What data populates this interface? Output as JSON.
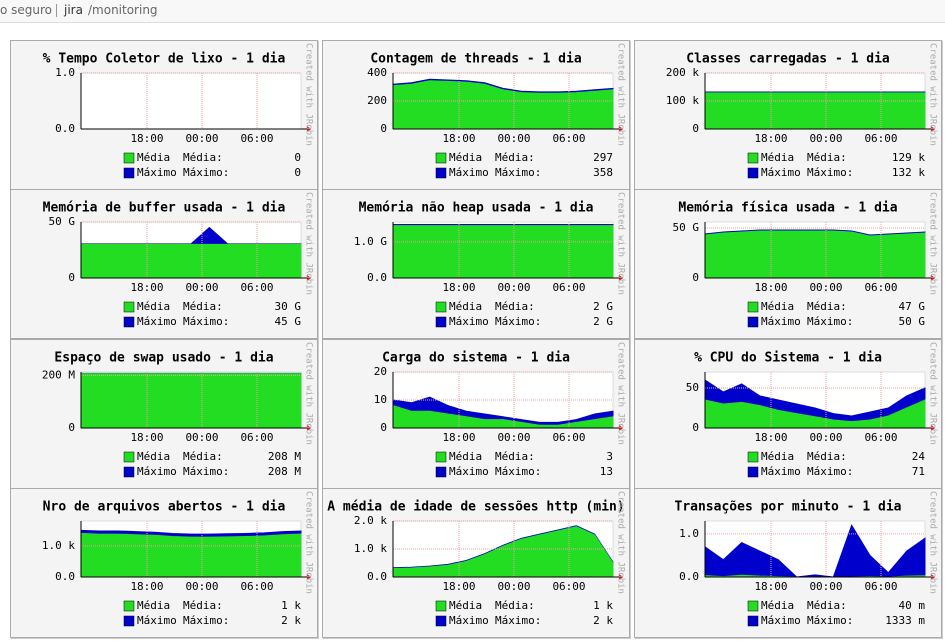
{
  "address_bar": {
    "security": "o seguro",
    "host": "jira",
    "path": "/monitoring"
  },
  "watermark": "Created with JRobin",
  "chart_data": [
    {
      "type": "area",
      "title": "% Tempo Coletor de lixo - 1 dia",
      "x": [
        0,
        2,
        4,
        6,
        8,
        10,
        12,
        14,
        16,
        18,
        20,
        22,
        24
      ],
      "xlim": [
        0,
        24
      ],
      "xticks": [
        {
          "value": 7.2,
          "label": "18:00"
        },
        {
          "value": 13.2,
          "label": "00:00"
        },
        {
          "value": 19.2,
          "label": "06:00"
        }
      ],
      "ylim": [
        0,
        1
      ],
      "yticks": [
        {
          "value": 0,
          "label": "0.0"
        },
        {
          "value": 1,
          "label": "1.0"
        }
      ],
      "grid": true,
      "series": [
        {
          "name": "Máximo",
          "color": "#0000cc",
          "values": [
            0,
            0,
            0,
            0,
            0,
            0,
            0,
            0,
            0,
            0,
            0,
            0,
            0
          ]
        },
        {
          "name": "Média",
          "color": "#22dd22",
          "values": [
            0,
            0,
            0,
            0,
            0,
            0,
            0,
            0,
            0,
            0,
            0,
            0,
            0
          ]
        }
      ],
      "stat_labels": [
        "Máximo:",
        "Média:"
      ],
      "summary": [
        "0",
        "0"
      ]
    },
    {
      "type": "area",
      "title": "Contagem de threads - 1 dia",
      "x": [
        0,
        2,
        4,
        6,
        8,
        10,
        12,
        14,
        16,
        18,
        20,
        22,
        24
      ],
      "xlim": [
        0,
        24
      ],
      "xticks": [
        {
          "value": 7.2,
          "label": "18:00"
        },
        {
          "value": 13.2,
          "label": "00:00"
        },
        {
          "value": 19.2,
          "label": "06:00"
        }
      ],
      "ylim": [
        0,
        400
      ],
      "yticks": [
        0,
        200,
        400
      ],
      "grid": true,
      "series": [
        {
          "name": "Máximo",
          "color": "#0000cc",
          "values": [
            320,
            330,
            355,
            350,
            345,
            330,
            290,
            270,
            265,
            265,
            270,
            280,
            290
          ]
        },
        {
          "name": "Média",
          "color": "#22dd22",
          "values": [
            310,
            320,
            345,
            340,
            335,
            320,
            280,
            260,
            255,
            255,
            260,
            270,
            280
          ]
        }
      ],
      "stat_labels": [
        "Máximo:",
        "Média:"
      ],
      "summary": [
        "358",
        "297"
      ]
    },
    {
      "type": "area",
      "title": "Classes carregadas - 1 dia",
      "x": [
        0,
        2,
        4,
        6,
        8,
        10,
        12,
        14,
        16,
        18,
        20,
        22,
        24
      ],
      "xlim": [
        0,
        24
      ],
      "xticks": [
        {
          "value": 7.2,
          "label": "18:00"
        },
        {
          "value": 13.2,
          "label": "00:00"
        },
        {
          "value": 19.2,
          "label": "06:00"
        }
      ],
      "ylim": [
        0,
        200000
      ],
      "yticks": [
        0,
        {
          "value": 100000,
          "label": "100 k"
        },
        {
          "value": 200000,
          "label": "200 k"
        }
      ],
      "grid": true,
      "series": [
        {
          "name": "Máximo",
          "color": "#0000cc",
          "values": [
            132000,
            132000,
            132000,
            132000,
            132000,
            132000,
            132000,
            132000,
            132000,
            132000,
            132000,
            132000,
            132000
          ]
        },
        {
          "name": "Média",
          "color": "#22dd22",
          "values": [
            129000,
            129000,
            129000,
            129000,
            129000,
            129000,
            129000,
            129000,
            129000,
            129000,
            129000,
            129000,
            129000
          ]
        }
      ],
      "stat_labels": [
        "Máximo:",
        "Média:"
      ],
      "summary": [
        "132 k",
        "129 k"
      ]
    },
    {
      "type": "area",
      "title": "Memória de buffer usada - 1 dia",
      "x": [
        0,
        2,
        4,
        6,
        8,
        10,
        12,
        14,
        16,
        18,
        20,
        22,
        24
      ],
      "xlim": [
        0,
        24
      ],
      "xticks": [
        {
          "value": 7.2,
          "label": "18:00"
        },
        {
          "value": 13.2,
          "label": "00:00"
        },
        {
          "value": 19.2,
          "label": "06:00"
        }
      ],
      "ylim": [
        0,
        50000000000.0
      ],
      "yticks": [
        0,
        {
          "value": 50000000000.0,
          "label": "50 G"
        }
      ],
      "grid": true,
      "series": [
        {
          "name": "Máximo",
          "color": "#0000cc",
          "values": [
            30500000000.0,
            30500000000.0,
            30500000000.0,
            30500000000.0,
            30500000000.0,
            30500000000.0,
            30500000000.0,
            45000000000.0,
            30500000000.0,
            30500000000.0,
            30500000000.0,
            30500000000.0,
            30500000000.0
          ]
        },
        {
          "name": "Média",
          "color": "#22dd22",
          "values": [
            30000000000.0,
            30000000000.0,
            30000000000.0,
            30000000000.0,
            30000000000.0,
            30000000000.0,
            30000000000.0,
            30000000000.0,
            30000000000.0,
            30000000000.0,
            30000000000.0,
            30000000000.0,
            30000000000.0
          ]
        }
      ],
      "stat_labels": [
        "Máximo:",
        "Média:"
      ],
      "summary": [
        "45 G",
        "30 G"
      ]
    },
    {
      "type": "area",
      "title": "Memória não heap usada - 1 dia",
      "x": [
        0,
        2,
        4,
        6,
        8,
        10,
        12,
        14,
        16,
        18,
        20,
        22,
        24
      ],
      "xlim": [
        0,
        24
      ],
      "xticks": [
        {
          "value": 7.2,
          "label": "18:00"
        },
        {
          "value": 13.2,
          "label": "00:00"
        },
        {
          "value": 19.2,
          "label": "06:00"
        }
      ],
      "ylim": [
        0,
        1550000000.0
      ],
      "yticks": [
        {
          "value": 0,
          "label": "0.0"
        },
        {
          "value": 1000000000.0,
          "label": "1.0 G"
        }
      ],
      "grid": true,
      "series": [
        {
          "name": "Máximo",
          "color": "#0000cc",
          "values": [
            1480000000.0,
            1480000000.0,
            1480000000.0,
            1480000000.0,
            1480000000.0,
            1480000000.0,
            1480000000.0,
            1480000000.0,
            1480000000.0,
            1480000000.0,
            1480000000.0,
            1480000000.0,
            1480000000.0
          ]
        },
        {
          "name": "Média",
          "color": "#22dd22",
          "values": [
            1450000000.0,
            1450000000.0,
            1450000000.0,
            1450000000.0,
            1450000000.0,
            1450000000.0,
            1450000000.0,
            1450000000.0,
            1450000000.0,
            1450000000.0,
            1450000000.0,
            1450000000.0,
            1450000000.0
          ]
        }
      ],
      "stat_labels": [
        "Máximo:",
        "Média:"
      ],
      "summary": [
        "2 G",
        "2 G"
      ]
    },
    {
      "type": "area",
      "title": "Memória física usada - 1 dia",
      "x": [
        0,
        2,
        4,
        6,
        8,
        10,
        12,
        14,
        16,
        18,
        20,
        22,
        24
      ],
      "xlim": [
        0,
        24
      ],
      "xticks": [
        {
          "value": 7.2,
          "label": "18:00"
        },
        {
          "value": 13.2,
          "label": "00:00"
        },
        {
          "value": 19.2,
          "label": "06:00"
        }
      ],
      "ylim": [
        0,
        56000000000.0
      ],
      "yticks": [
        0,
        {
          "value": 50000000000.0,
          "label": "50 G"
        }
      ],
      "grid": true,
      "series": [
        {
          "name": "Máximo",
          "color": "#0000cc",
          "values": [
            44000000000.0,
            46000000000.0,
            47000000000.0,
            48000000000.0,
            48000000000.0,
            48000000000.0,
            48000000000.0,
            48000000000.0,
            47000000000.0,
            43000000000.0,
            44000000000.0,
            45000000000.0,
            46000000000.0
          ]
        },
        {
          "name": "Média",
          "color": "#22dd22",
          "values": [
            43000000000.0,
            45000000000.0,
            46000000000.0,
            47000000000.0,
            47000000000.0,
            47000000000.0,
            47000000000.0,
            47000000000.0,
            46000000000.0,
            42000000000.0,
            43000000000.0,
            44000000000.0,
            45000000000.0
          ]
        }
      ],
      "stat_labels": [
        "Máximo:",
        "Média:"
      ],
      "summary": [
        "50 G",
        "47 G"
      ]
    },
    {
      "type": "area",
      "title": "Espaço de swap usado - 1 dia",
      "x": [
        0,
        2,
        4,
        6,
        8,
        10,
        12,
        14,
        16,
        18,
        20,
        22,
        24
      ],
      "xlim": [
        0,
        24
      ],
      "xticks": [
        {
          "value": 7.2,
          "label": "18:00"
        },
        {
          "value": 13.2,
          "label": "00:00"
        },
        {
          "value": 19.2,
          "label": "06:00"
        }
      ],
      "ylim": [
        0,
        213000000.0
      ],
      "yticks": [
        0,
        {
          "value": 200000000.0,
          "label": "200 M"
        }
      ],
      "grid": true,
      "series": [
        {
          "name": "Máximo",
          "color": "#0000cc",
          "values": [
            208000000.0,
            208000000.0,
            208000000.0,
            208000000.0,
            208000000.0,
            208000000.0,
            208000000.0,
            208000000.0,
            208000000.0,
            208000000.0,
            208000000.0,
            208000000.0,
            208000000.0
          ]
        },
        {
          "name": "Média",
          "color": "#22dd22",
          "values": [
            207000000.0,
            207000000.0,
            207000000.0,
            207000000.0,
            207000000.0,
            207000000.0,
            207000000.0,
            207000000.0,
            207000000.0,
            207000000.0,
            207000000.0,
            207000000.0,
            207000000.0
          ]
        }
      ],
      "stat_labels": [
        "Máximo:",
        "Média:"
      ],
      "summary": [
        "208 M",
        "208 M"
      ]
    },
    {
      "type": "area",
      "title": "Carga do sistema - 1 dia",
      "x": [
        0,
        2,
        4,
        6,
        8,
        10,
        12,
        14,
        16,
        18,
        20,
        22,
        24
      ],
      "xlim": [
        0,
        24
      ],
      "xticks": [
        {
          "value": 7.2,
          "label": "18:00"
        },
        {
          "value": 13.2,
          "label": "00:00"
        },
        {
          "value": 19.2,
          "label": "06:00"
        }
      ],
      "ylim": [
        0,
        20
      ],
      "yticks": [
        0,
        10,
        20
      ],
      "grid": true,
      "series": [
        {
          "name": "Máximo",
          "color": "#0000cc",
          "values": [
            10,
            9,
            11,
            8,
            6,
            5,
            4,
            3,
            2,
            2,
            3,
            5,
            6
          ]
        },
        {
          "name": "Média",
          "color": "#22dd22",
          "values": [
            8,
            6,
            6,
            5,
            4,
            3,
            3,
            2,
            1,
            1,
            2,
            3,
            4
          ]
        }
      ],
      "stat_labels": [
        "Máximo:",
        "Média:"
      ],
      "summary": [
        "13",
        "3"
      ]
    },
    {
      "type": "area",
      "title": "% CPU do Sistema - 1 dia",
      "x": [
        0,
        2,
        4,
        6,
        8,
        10,
        12,
        14,
        16,
        18,
        20,
        22,
        24
      ],
      "xlim": [
        0,
        24
      ],
      "xticks": [
        {
          "value": 7.2,
          "label": "18:00"
        },
        {
          "value": 13.2,
          "label": "00:00"
        },
        {
          "value": 19.2,
          "label": "06:00"
        }
      ],
      "ylim": [
        0,
        70
      ],
      "yticks": [
        0,
        50
      ],
      "grid": true,
      "series": [
        {
          "name": "Máximo",
          "color": "#0000cc",
          "values": [
            60,
            45,
            55,
            40,
            35,
            30,
            25,
            18,
            15,
            20,
            25,
            40,
            50
          ]
        },
        {
          "name": "Média",
          "color": "#22dd22",
          "values": [
            35,
            30,
            32,
            28,
            22,
            18,
            14,
            10,
            8,
            10,
            15,
            25,
            35
          ]
        }
      ],
      "stat_labels": [
        "Máximo:",
        "Média:"
      ],
      "summary": [
        "71",
        "24"
      ]
    },
    {
      "type": "area",
      "title": "Nro de arquivos abertos - 1 dia",
      "x": [
        0,
        2,
        4,
        6,
        8,
        10,
        12,
        14,
        16,
        18,
        20,
        22,
        24
      ],
      "xlim": [
        0,
        24
      ],
      "xticks": [
        {
          "value": 7.2,
          "label": "18:00"
        },
        {
          "value": 13.2,
          "label": "00:00"
        },
        {
          "value": 19.2,
          "label": "06:00"
        }
      ],
      "ylim": [
        0,
        1800
      ],
      "yticks": [
        {
          "value": 0,
          "label": "0.0"
        },
        {
          "value": 1000,
          "label": "1.0 k"
        }
      ],
      "grid": true,
      "series": [
        {
          "name": "Máximo",
          "color": "#0000cc",
          "values": [
            1500,
            1480,
            1480,
            1460,
            1440,
            1400,
            1380,
            1380,
            1390,
            1400,
            1420,
            1460,
            1480
          ]
        },
        {
          "name": "Média",
          "color": "#22dd22",
          "values": [
            1400,
            1380,
            1380,
            1360,
            1340,
            1300,
            1280,
            1280,
            1290,
            1300,
            1320,
            1360,
            1380
          ]
        }
      ],
      "stat_labels": [
        "Máximo:",
        "Média:"
      ],
      "summary": [
        "2 k",
        "1 k"
      ]
    },
    {
      "type": "area",
      "title": "A média de idade de sessões http (min)",
      "x": [
        0,
        2,
        4,
        6,
        8,
        10,
        12,
        14,
        16,
        18,
        20,
        22,
        24
      ],
      "xlim": [
        0,
        24
      ],
      "xticks": [
        {
          "value": 7.2,
          "label": "18:00"
        },
        {
          "value": 13.2,
          "label": "00:00"
        },
        {
          "value": 19.2,
          "label": "06:00"
        }
      ],
      "ylim": [
        0,
        2000
      ],
      "yticks": [
        {
          "value": 0,
          "label": "0.0"
        },
        {
          "value": 1000,
          "label": "1.0 k"
        },
        {
          "value": 2000,
          "label": "2.0 k"
        }
      ],
      "grid": true,
      "series": [
        {
          "name": "Máximo",
          "color": "#0000cc",
          "values": [
            330,
            350,
            390,
            450,
            590,
            830,
            1130,
            1380,
            1530,
            1680,
            1830,
            1530,
            530
          ]
        },
        {
          "name": "Média",
          "color": "#22dd22",
          "values": [
            300,
            320,
            360,
            420,
            560,
            800,
            1100,
            1350,
            1500,
            1650,
            1800,
            1500,
            500
          ]
        }
      ],
      "stat_labels": [
        "Máximo:",
        "Média:"
      ],
      "summary": [
        "2 k",
        "1 k"
      ]
    },
    {
      "type": "area",
      "title": "Transações por minuto - 1 dia",
      "x": [
        0,
        2,
        4,
        6,
        8,
        10,
        12,
        14,
        16,
        18,
        20,
        22,
        24
      ],
      "xlim": [
        0,
        24
      ],
      "xticks": [
        {
          "value": 7.2,
          "label": "18:00"
        },
        {
          "value": 13.2,
          "label": "00:00"
        },
        {
          "value": 19.2,
          "label": "06:00"
        }
      ],
      "ylim": [
        0,
        1.3
      ],
      "yticks": [
        {
          "value": 0,
          "label": "0.0"
        },
        {
          "value": 1,
          "label": "1.0"
        }
      ],
      "grid": true,
      "series": [
        {
          "name": "Máximo",
          "color": "#0000cc",
          "values": [
            0.7,
            0.4,
            0.8,
            0.6,
            0.4,
            0,
            0.05,
            0,
            1.2,
            0.5,
            0.1,
            0.6,
            0.9
          ]
        },
        {
          "name": "Média",
          "color": "#22dd22",
          "values": [
            0.03,
            0.01,
            0.04,
            0.02,
            0.01,
            0,
            0,
            0,
            0,
            0.01,
            0,
            0.02,
            0.03
          ]
        }
      ],
      "stat_labels": [
        "Máximo:",
        "Média:"
      ],
      "summary": [
        "1333 m",
        "40 m"
      ]
    }
  ]
}
